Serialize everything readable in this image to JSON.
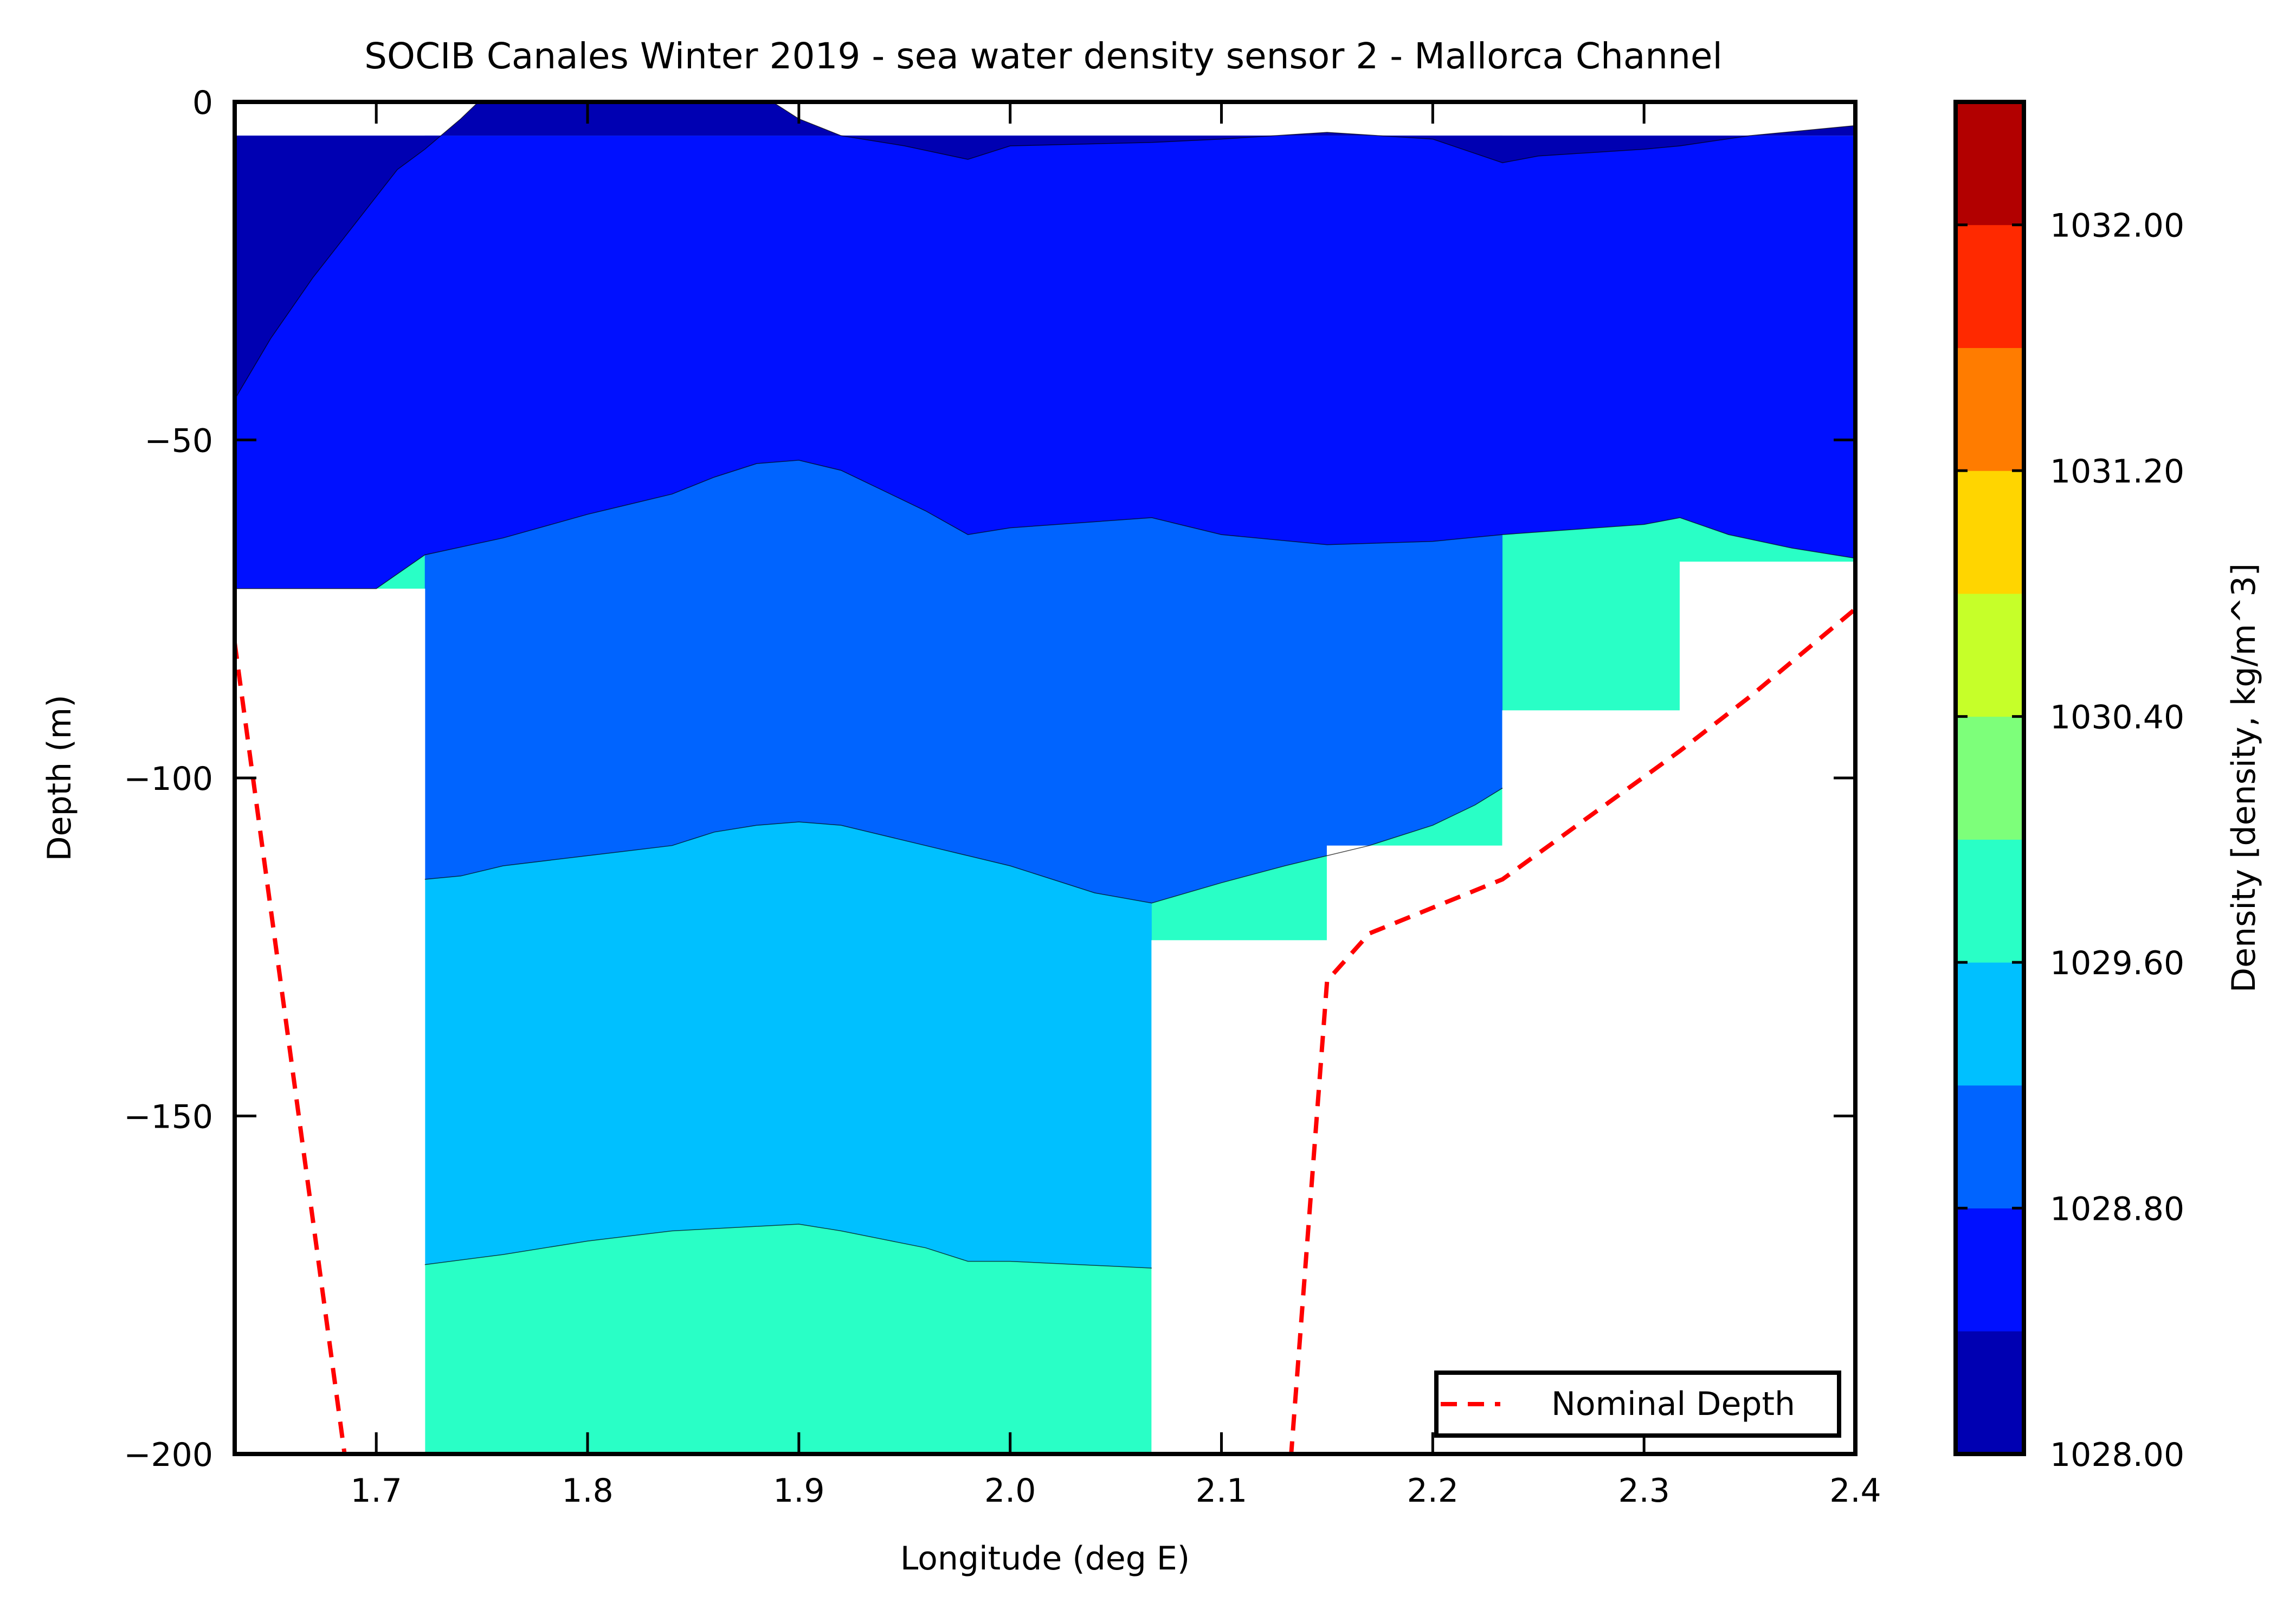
{
  "chart_data": {
    "type": "contour",
    "title": "SOCIB Canales Winter 2019 - sea water density sensor 2  -  Mallorca Channel",
    "xlabel": "Longitude (deg E)",
    "ylabel": "Depth (m)",
    "xlim": [
      1.633,
      2.4
    ],
    "ylim": [
      -200,
      0
    ],
    "xticks": [
      "1.7",
      "1.8",
      "1.9",
      "2.0",
      "2.1",
      "2.2",
      "2.3",
      "2.4"
    ],
    "yticks": [
      "0",
      "−50",
      "−100",
      "−150",
      "−200"
    ],
    "grid": false,
    "colorbar": {
      "label": "Density [density, kg/m^3]",
      "range": [
        1028.0,
        1032.4
      ],
      "ticks": [
        "1028.00",
        "1028.80",
        "1029.60",
        "1030.40",
        "1031.20",
        "1032.00"
      ],
      "levels": [
        {
          "lo": 1028.0,
          "hi": 1028.4,
          "color": "#0000b2"
        },
        {
          "lo": 1028.4,
          "hi": 1028.8,
          "color": "#0010ff"
        },
        {
          "lo": 1028.8,
          "hi": 1029.2,
          "color": "#0064ff"
        },
        {
          "lo": 1029.2,
          "hi": 1029.6,
          "color": "#00c0ff"
        },
        {
          "lo": 1029.6,
          "hi": 1030.0,
          "color": "#29ffc6"
        },
        {
          "lo": 1030.0,
          "hi": 1030.4,
          "color": "#7dff7a"
        },
        {
          "lo": 1030.4,
          "hi": 1030.8,
          "color": "#c6ff29"
        },
        {
          "lo": 1030.8,
          "hi": 1031.2,
          "color": "#ffd500"
        },
        {
          "lo": 1031.2,
          "hi": 1031.6,
          "color": "#ff7c00"
        },
        {
          "lo": 1031.6,
          "hi": 1032.0,
          "color": "#ff2900"
        },
        {
          "lo": 1032.0,
          "hi": 1032.4,
          "color": "#b20000"
        }
      ]
    },
    "data_top_depth": -5,
    "profile_floor": [
      {
        "x0": 1.633,
        "x1": 1.723,
        "depth": -72
      },
      {
        "x0": 1.723,
        "x1": 2.067,
        "depth": -200
      },
      {
        "x0": 2.067,
        "x1": 2.15,
        "depth": -124
      },
      {
        "x0": 2.15,
        "x1": 2.233,
        "depth": -110
      },
      {
        "x0": 2.233,
        "x1": 2.317,
        "depth": -90
      },
      {
        "x0": 2.317,
        "x1": 2.4,
        "depth": -68
      }
    ],
    "isopycnals": [
      {
        "level": 1028.4,
        "points": [
          [
            1.633,
            -44
          ],
          [
            1.65,
            -35
          ],
          [
            1.67,
            -26
          ],
          [
            1.69,
            -18
          ],
          [
            1.71,
            -10
          ],
          [
            1.723,
            -7
          ],
          [
            1.74,
            -2.5
          ],
          [
            1.76,
            3.5
          ],
          [
            1.77,
            4.5
          ],
          [
            1.78,
            8.5
          ],
          [
            1.79,
            12
          ],
          [
            1.8,
            14.5
          ],
          [
            1.82,
            14.5
          ],
          [
            1.84,
            10.5
          ],
          [
            1.86,
            6
          ],
          [
            1.88,
            1.5
          ],
          [
            1.9,
            -2.5
          ],
          [
            1.92,
            -5
          ],
          [
            1.95,
            -6.5
          ],
          [
            1.98,
            -8.5
          ],
          [
            2.0,
            -6.5
          ],
          [
            2.067,
            -6
          ],
          [
            2.1,
            -5.5
          ],
          [
            2.15,
            -4.5
          ],
          [
            2.2,
            -5.5
          ],
          [
            2.233,
            -9
          ],
          [
            2.25,
            -8
          ],
          [
            2.3,
            -7
          ],
          [
            2.317,
            -6.5
          ],
          [
            2.35,
            -5
          ],
          [
            2.4,
            -3.5
          ]
        ]
      },
      {
        "level": 1028.8,
        "points": [
          [
            1.633,
            -72
          ],
          [
            1.7,
            -72
          ],
          [
            1.723,
            -67
          ],
          [
            1.76,
            -64.5
          ],
          [
            1.8,
            -61
          ],
          [
            1.84,
            -58
          ],
          [
            1.86,
            -55.5
          ],
          [
            1.88,
            -53.5
          ],
          [
            1.9,
            -53
          ],
          [
            1.92,
            -54.5
          ],
          [
            1.94,
            -57.5
          ],
          [
            1.96,
            -60.5
          ],
          [
            1.98,
            -64
          ],
          [
            2.0,
            -63
          ],
          [
            2.067,
            -61.5
          ],
          [
            2.1,
            -64
          ],
          [
            2.15,
            -65.5
          ],
          [
            2.2,
            -65
          ],
          [
            2.233,
            -64
          ],
          [
            2.3,
            -62.5
          ],
          [
            2.317,
            -61.5
          ],
          [
            2.34,
            -64
          ],
          [
            2.37,
            -66
          ],
          [
            2.4,
            -67.5
          ]
        ]
      },
      {
        "level": 1029.2,
        "points": [
          [
            1.723,
            -115
          ],
          [
            1.74,
            -114.5
          ],
          [
            1.76,
            -113
          ],
          [
            1.8,
            -111.5
          ],
          [
            1.84,
            -110
          ],
          [
            1.86,
            -108
          ],
          [
            1.88,
            -107
          ],
          [
            1.9,
            -106.5
          ],
          [
            1.92,
            -107
          ],
          [
            1.94,
            -108.5
          ],
          [
            1.96,
            -110
          ],
          [
            1.98,
            -111.5
          ],
          [
            2.0,
            -113
          ],
          [
            2.02,
            -115
          ],
          [
            2.04,
            -117
          ],
          [
            2.067,
            -118.5
          ],
          [
            2.1,
            -115.5
          ],
          [
            2.13,
            -113
          ],
          [
            2.15,
            -111.5
          ],
          [
            2.17,
            -110
          ],
          [
            2.2,
            -107
          ],
          [
            2.22,
            -104
          ],
          [
            2.233,
            -101.5
          ]
        ]
      },
      {
        "level": 1029.6,
        "points": [
          [
            1.723,
            -172
          ],
          [
            1.76,
            -170.5
          ],
          [
            1.8,
            -168.5
          ],
          [
            1.84,
            -167
          ],
          [
            1.9,
            -166
          ],
          [
            1.92,
            -167
          ],
          [
            1.96,
            -169.5
          ],
          [
            1.98,
            -171.5
          ],
          [
            2.0,
            -171.5
          ],
          [
            2.067,
            -172.5
          ]
        ]
      }
    ],
    "nominal_depth": [
      [
        1.633,
        -80
      ],
      [
        1.685,
        -200
      ],
      [
        2.133,
        -200
      ],
      [
        2.15,
        -130
      ],
      [
        2.17,
        -123
      ],
      [
        2.233,
        -115
      ],
      [
        2.317,
        -96
      ],
      [
        2.35,
        -88
      ],
      [
        2.4,
        -75
      ]
    ],
    "legend": {
      "entry": "Nominal Depth",
      "placement": "lower right",
      "color": "#ff0000",
      "style": "dashed"
    }
  }
}
